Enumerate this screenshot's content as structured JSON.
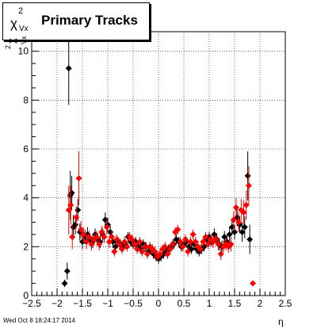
{
  "chart_data": {
    "type": "scatter",
    "title": "Primary Tracks",
    "title_symbol": "χ",
    "title_superscript": "2",
    "title_subscript": "Vx",
    "ylabel_symbol": "χ",
    "ylabel_superscript": "2",
    "ylabel_subscript": "Vx",
    "xlabel": "η",
    "xlim": [
      -2.5,
      2.5
    ],
    "ylim": [
      0,
      10.8
    ],
    "x_ticks": [
      "−2.5",
      "−2",
      "−1.5",
      "−1",
      "−0.5",
      "0",
      "0.5",
      "1",
      "1.5",
      "2",
      "2.5"
    ],
    "y_ticks": [
      "0",
      "2",
      "4",
      "6",
      "8",
      "10"
    ],
    "grid": true,
    "series": [
      {
        "color": "#000000",
        "points": [
          {
            "x": -1.85,
            "y": 0.5,
            "err": 0.15
          },
          {
            "x": -1.8,
            "y": 1.0,
            "err": 0.35
          },
          {
            "x": -1.77,
            "y": 9.3,
            "err": 1.5
          },
          {
            "x": -1.74,
            "y": 4.1,
            "err": 1.0
          },
          {
            "x": -1.71,
            "y": 4.2,
            "err": 0.7
          },
          {
            "x": -1.68,
            "y": 2.8,
            "err": 0.5
          },
          {
            "x": -1.64,
            "y": 2.9,
            "err": 0.4
          },
          {
            "x": -1.59,
            "y": 3.5,
            "err": 0.45
          },
          {
            "x": -1.55,
            "y": 2.6,
            "err": 0.35
          },
          {
            "x": -1.5,
            "y": 2.2,
            "err": 0.3
          },
          {
            "x": -1.45,
            "y": 2.4,
            "err": 0.3
          },
          {
            "x": -1.4,
            "y": 2.5,
            "err": 0.3
          },
          {
            "x": -1.35,
            "y": 2.3,
            "err": 0.25
          },
          {
            "x": -1.3,
            "y": 2.2,
            "err": 0.25
          },
          {
            "x": -1.25,
            "y": 2.5,
            "err": 0.25
          },
          {
            "x": -1.2,
            "y": 2.3,
            "err": 0.25
          },
          {
            "x": -1.15,
            "y": 2.2,
            "err": 0.25
          },
          {
            "x": -1.1,
            "y": 2.5,
            "err": 0.25
          },
          {
            "x": -1.05,
            "y": 3.1,
            "err": 0.3
          },
          {
            "x": -1.0,
            "y": 2.9,
            "err": 0.3
          },
          {
            "x": -0.95,
            "y": 2.6,
            "err": 0.25
          },
          {
            "x": -0.9,
            "y": 2.2,
            "err": 0.25
          },
          {
            "x": -0.85,
            "y": 2.0,
            "err": 0.2
          },
          {
            "x": -0.8,
            "y": 2.2,
            "err": 0.2
          },
          {
            "x": -0.75,
            "y": 2.1,
            "err": 0.2
          },
          {
            "x": -0.7,
            "y": 2.0,
            "err": 0.2
          },
          {
            "x": -0.65,
            "y": 2.1,
            "err": 0.2
          },
          {
            "x": -0.6,
            "y": 2.4,
            "err": 0.2
          },
          {
            "x": -0.55,
            "y": 2.2,
            "err": 0.2
          },
          {
            "x": -0.5,
            "y": 2.1,
            "err": 0.2
          },
          {
            "x": -0.45,
            "y": 2.2,
            "err": 0.2
          },
          {
            "x": -0.4,
            "y": 2.0,
            "err": 0.2
          },
          {
            "x": -0.35,
            "y": 1.9,
            "err": 0.2
          },
          {
            "x": -0.3,
            "y": 2.1,
            "err": 0.2
          },
          {
            "x": -0.25,
            "y": 2.0,
            "err": 0.2
          },
          {
            "x": -0.2,
            "y": 1.8,
            "err": 0.2
          },
          {
            "x": -0.15,
            "y": 1.9,
            "err": 0.2
          },
          {
            "x": -0.1,
            "y": 1.7,
            "err": 0.2
          },
          {
            "x": -0.05,
            "y": 1.6,
            "err": 0.2
          },
          {
            "x": 0.0,
            "y": 1.5,
            "err": 0.2
          },
          {
            "x": 0.05,
            "y": 1.6,
            "err": 0.2
          },
          {
            "x": 0.1,
            "y": 1.7,
            "err": 0.2
          },
          {
            "x": 0.15,
            "y": 1.8,
            "err": 0.2
          },
          {
            "x": 0.2,
            "y": 1.9,
            "err": 0.2
          },
          {
            "x": 0.25,
            "y": 2.0,
            "err": 0.2
          },
          {
            "x": 0.3,
            "y": 2.1,
            "err": 0.2
          },
          {
            "x": 0.35,
            "y": 2.3,
            "err": 0.2
          },
          {
            "x": 0.4,
            "y": 2.2,
            "err": 0.2
          },
          {
            "x": 0.45,
            "y": 2.0,
            "err": 0.2
          },
          {
            "x": 0.5,
            "y": 2.1,
            "err": 0.2
          },
          {
            "x": 0.55,
            "y": 2.2,
            "err": 0.2
          },
          {
            "x": 0.6,
            "y": 2.0,
            "err": 0.2
          },
          {
            "x": 0.65,
            "y": 1.9,
            "err": 0.2
          },
          {
            "x": 0.7,
            "y": 2.1,
            "err": 0.2
          },
          {
            "x": 0.75,
            "y": 1.9,
            "err": 0.2
          },
          {
            "x": 0.8,
            "y": 1.8,
            "err": 0.2
          },
          {
            "x": 0.85,
            "y": 1.9,
            "err": 0.2
          },
          {
            "x": 0.9,
            "y": 2.0,
            "err": 0.2
          },
          {
            "x": 0.95,
            "y": 2.3,
            "err": 0.2
          },
          {
            "x": 1.0,
            "y": 2.4,
            "err": 0.2
          },
          {
            "x": 1.05,
            "y": 2.2,
            "err": 0.2
          },
          {
            "x": 1.1,
            "y": 2.5,
            "err": 0.25
          },
          {
            "x": 1.15,
            "y": 2.3,
            "err": 0.25
          },
          {
            "x": 1.2,
            "y": 2.1,
            "err": 0.25
          },
          {
            "x": 1.25,
            "y": 2.0,
            "err": 0.25
          },
          {
            "x": 1.3,
            "y": 2.4,
            "err": 0.25
          },
          {
            "x": 1.35,
            "y": 2.2,
            "err": 0.25
          },
          {
            "x": 1.4,
            "y": 2.5,
            "err": 0.3
          },
          {
            "x": 1.45,
            "y": 2.8,
            "err": 0.3
          },
          {
            "x": 1.5,
            "y": 2.6,
            "err": 0.3
          },
          {
            "x": 1.55,
            "y": 3.2,
            "err": 0.35
          },
          {
            "x": 1.6,
            "y": 2.9,
            "err": 0.35
          },
          {
            "x": 1.65,
            "y": 2.6,
            "err": 0.4
          },
          {
            "x": 1.7,
            "y": 2.8,
            "err": 0.45
          },
          {
            "x": 1.76,
            "y": 4.9,
            "err": 1.0
          },
          {
            "x": 1.8,
            "y": 2.3,
            "err": 0.6
          }
        ]
      },
      {
        "color": "#ff0000",
        "points": [
          {
            "x": -1.77,
            "y": 3.5,
            "err": 1.0
          },
          {
            "x": -1.73,
            "y": 3.7,
            "err": 0.8
          },
          {
            "x": -1.7,
            "y": 2.4,
            "err": 0.5
          },
          {
            "x": -1.62,
            "y": 3.2,
            "err": 0.45
          },
          {
            "x": -1.57,
            "y": 4.8,
            "err": 1.1
          },
          {
            "x": -1.53,
            "y": 2.7,
            "err": 0.35
          },
          {
            "x": -1.48,
            "y": 2.5,
            "err": 0.3
          },
          {
            "x": -1.42,
            "y": 2.2,
            "err": 0.3
          },
          {
            "x": -1.37,
            "y": 2.4,
            "err": 0.25
          },
          {
            "x": -1.32,
            "y": 2.1,
            "err": 0.25
          },
          {
            "x": -1.27,
            "y": 2.3,
            "err": 0.25
          },
          {
            "x": -1.22,
            "y": 2.4,
            "err": 0.25
          },
          {
            "x": -1.17,
            "y": 2.1,
            "err": 0.25
          },
          {
            "x": -1.12,
            "y": 2.6,
            "err": 0.25
          },
          {
            "x": -1.07,
            "y": 2.4,
            "err": 0.25
          },
          {
            "x": -1.02,
            "y": 2.8,
            "err": 0.3
          },
          {
            "x": -0.97,
            "y": 2.2,
            "err": 0.25
          },
          {
            "x": -0.92,
            "y": 2.4,
            "err": 0.25
          },
          {
            "x": -0.87,
            "y": 1.8,
            "err": 0.2
          },
          {
            "x": -0.82,
            "y": 2.3,
            "err": 0.2
          },
          {
            "x": -0.77,
            "y": 2.1,
            "err": 0.2
          },
          {
            "x": -0.72,
            "y": 1.9,
            "err": 0.2
          },
          {
            "x": -0.67,
            "y": 2.2,
            "err": 0.2
          },
          {
            "x": -0.62,
            "y": 2.0,
            "err": 0.2
          },
          {
            "x": -0.57,
            "y": 2.4,
            "err": 0.2
          },
          {
            "x": -0.52,
            "y": 2.3,
            "err": 0.2
          },
          {
            "x": -0.47,
            "y": 2.1,
            "err": 0.2
          },
          {
            "x": -0.42,
            "y": 1.9,
            "err": 0.2
          },
          {
            "x": -0.37,
            "y": 2.2,
            "err": 0.2
          },
          {
            "x": -0.32,
            "y": 1.8,
            "err": 0.2
          },
          {
            "x": -0.27,
            "y": 2.0,
            "err": 0.2
          },
          {
            "x": -0.22,
            "y": 1.7,
            "err": 0.2
          },
          {
            "x": -0.17,
            "y": 2.0,
            "err": 0.2
          },
          {
            "x": -0.12,
            "y": 1.9,
            "err": 0.2
          },
          {
            "x": -0.07,
            "y": 1.8,
            "err": 0.2
          },
          {
            "x": -0.02,
            "y": 1.6,
            "err": 0.2
          },
          {
            "x": 0.03,
            "y": 1.7,
            "err": 0.2
          },
          {
            "x": 0.08,
            "y": 1.9,
            "err": 0.2
          },
          {
            "x": 0.13,
            "y": 2.0,
            "err": 0.2
          },
          {
            "x": 0.18,
            "y": 1.7,
            "err": 0.2
          },
          {
            "x": 0.23,
            "y": 1.9,
            "err": 0.2
          },
          {
            "x": 0.28,
            "y": 2.1,
            "err": 0.2
          },
          {
            "x": 0.33,
            "y": 2.6,
            "err": 0.2
          },
          {
            "x": 0.38,
            "y": 2.7,
            "err": 0.2
          },
          {
            "x": 0.43,
            "y": 2.2,
            "err": 0.2
          },
          {
            "x": 0.48,
            "y": 2.0,
            "err": 0.2
          },
          {
            "x": 0.53,
            "y": 2.3,
            "err": 0.2
          },
          {
            "x": 0.58,
            "y": 1.8,
            "err": 0.2
          },
          {
            "x": 0.63,
            "y": 2.2,
            "err": 0.2
          },
          {
            "x": 0.68,
            "y": 2.5,
            "err": 0.2
          },
          {
            "x": 0.73,
            "y": 2.2,
            "err": 0.2
          },
          {
            "x": 0.78,
            "y": 2.0,
            "err": 0.2
          },
          {
            "x": 0.83,
            "y": 1.9,
            "err": 0.2
          },
          {
            "x": 0.88,
            "y": 2.2,
            "err": 0.2
          },
          {
            "x": 0.93,
            "y": 2.4,
            "err": 0.2
          },
          {
            "x": 0.98,
            "y": 2.1,
            "err": 0.2
          },
          {
            "x": 1.03,
            "y": 2.3,
            "err": 0.2
          },
          {
            "x": 1.08,
            "y": 2.2,
            "err": 0.25
          },
          {
            "x": 1.13,
            "y": 2.3,
            "err": 0.25
          },
          {
            "x": 1.18,
            "y": 2.1,
            "err": 0.25
          },
          {
            "x": 1.23,
            "y": 1.7,
            "err": 0.25
          },
          {
            "x": 1.28,
            "y": 2.0,
            "err": 0.25
          },
          {
            "x": 1.33,
            "y": 2.1,
            "err": 0.25
          },
          {
            "x": 1.38,
            "y": 2.0,
            "err": 0.25
          },
          {
            "x": 1.43,
            "y": 2.1,
            "err": 0.3
          },
          {
            "x": 1.48,
            "y": 3.1,
            "err": 0.35
          },
          {
            "x": 1.53,
            "y": 3.6,
            "err": 0.4
          },
          {
            "x": 1.58,
            "y": 3.0,
            "err": 0.4
          },
          {
            "x": 1.63,
            "y": 3.5,
            "err": 0.45
          },
          {
            "x": 1.68,
            "y": 3.4,
            "err": 0.5
          },
          {
            "x": 1.73,
            "y": 3.7,
            "err": 0.6
          },
          {
            "x": 1.78,
            "y": 4.5,
            "err": 0.8
          },
          {
            "x": 1.86,
            "y": 0.5,
            "err": 0.1
          }
        ]
      }
    ]
  },
  "footer": {
    "timestamp": "Wed Oct  8 18:24:17 2014"
  }
}
